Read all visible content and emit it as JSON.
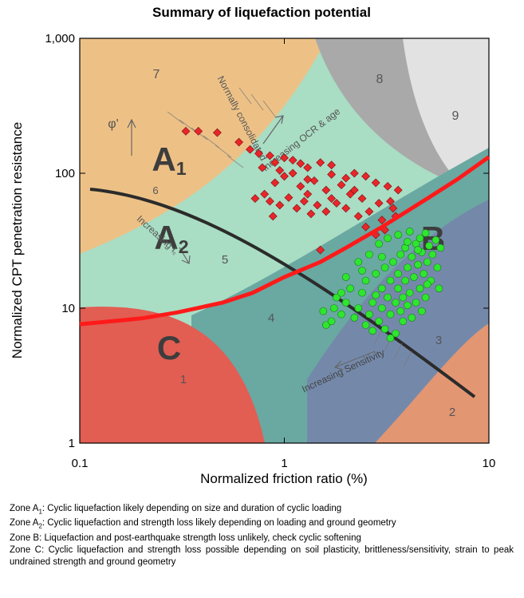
{
  "chart_data": {
    "type": "scatter",
    "title": "Summary of liquefaction potential",
    "x_label": "Normalized friction ratio (%)",
    "y_label": "Normalized CPT penetration resistance",
    "log_x": true,
    "log_y": true,
    "xlim": [
      0.1,
      10
    ],
    "ylim": [
      1,
      1000
    ],
    "xticks": [
      0.1,
      1,
      10
    ],
    "yticks": [
      1,
      10,
      100,
      {
        "value": 1000,
        "label": "1,000"
      }
    ],
    "series": [
      {
        "mark": "diamond",
        "color": "#e8262a",
        "x": [
          0.33,
          0.38,
          0.47,
          0.6,
          0.68,
          0.75,
          0.85,
          0.9,
          1.0,
          1.1,
          1.2,
          1.3,
          1.5,
          1.7,
          2.2,
          2.5,
          2.8,
          3.2,
          3.6,
          0.72,
          0.8,
          0.85,
          0.95,
          1.05,
          1.15,
          1.25,
          1.35,
          1.45,
          1.6,
          1.8,
          2.0,
          2.3,
          2.6,
          3.0,
          3.5,
          0.9,
          1.0,
          1.2,
          1.4,
          1.6,
          1.9,
          2.1,
          2.4,
          2.9,
          3.3,
          1.1,
          1.3,
          1.7,
          2.0,
          0.78,
          0.95,
          2.5,
          2.8,
          3.1,
          1.5,
          3.4,
          2.2,
          1.7,
          1.3,
          0.88
        ],
        "values": [
          205,
          205,
          200,
          170,
          150,
          140,
          135,
          120,
          130,
          125,
          118,
          110,
          120,
          115,
          100,
          95,
          85,
          80,
          75,
          65,
          70,
          62,
          58,
          66,
          55,
          62,
          50,
          58,
          52,
          60,
          55,
          48,
          52,
          45,
          48,
          85,
          95,
          80,
          88,
          75,
          82,
          70,
          65,
          60,
          62,
          100,
          90,
          98,
          92,
          110,
          105,
          40,
          35,
          38,
          27,
          55,
          75,
          65,
          70,
          48
        ]
      },
      {
        "mark": "circle",
        "color": "#2ee62e",
        "x": [
          1.55,
          1.6,
          1.7,
          1.75,
          1.8,
          1.9,
          2.0,
          2.1,
          2.2,
          2.3,
          2.4,
          2.5,
          2.5,
          2.6,
          2.7,
          2.8,
          2.8,
          2.9,
          3.0,
          3.0,
          3.1,
          3.1,
          3.2,
          3.3,
          3.3,
          3.4,
          3.5,
          3.5,
          3.6,
          3.6,
          3.7,
          3.7,
          3.8,
          3.9,
          3.9,
          4.0,
          4.0,
          4.1,
          4.2,
          4.2,
          4.3,
          4.4,
          4.4,
          4.5,
          4.6,
          4.6,
          4.7,
          4.8,
          4.9,
          4.9,
          5.0,
          5.1,
          5.2,
          5.3,
          5.5,
          5.6,
          5.8,
          5.7,
          2.3,
          2.0,
          1.9,
          2.6,
          2.9,
          3.2,
          3.6,
          4.1,
          4.5,
          3.8,
          3.3,
          2.7,
          4.0,
          3.0,
          2.4,
          5.0,
          4.7
        ],
        "values": [
          9.5,
          7.5,
          8,
          10,
          12,
          9,
          11,
          14,
          8.5,
          10,
          13,
          16,
          7.5,
          9,
          11,
          12.5,
          18,
          8,
          10,
          14,
          20,
          7,
          12,
          16,
          9,
          22,
          11,
          6.5,
          14,
          18,
          25,
          9.5,
          12,
          16,
          28,
          20,
          10.5,
          13,
          24,
          8.5,
          17,
          30,
          11,
          21,
          14,
          33,
          26,
          18,
          36,
          12,
          22,
          29,
          16,
          25,
          32,
          20,
          28,
          14,
          22,
          17,
          13,
          25,
          30,
          33,
          35,
          37,
          27,
          8,
          6,
          6.8,
          31,
          24,
          19,
          15,
          9.5
        ]
      },
      {
        "mark": "line",
        "color": "#ff1a1a",
        "x": [
          0.1,
          0.2,
          0.3,
          0.5,
          0.7,
          1,
          1.5,
          2,
          3,
          5,
          7,
          10
        ],
        "values": [
          7.6,
          8.4,
          9.3,
          11,
          13,
          17,
          22,
          28,
          40,
          65,
          90,
          132
        ]
      }
    ],
    "zone_labels": [
      {
        "text": "7"
      },
      {
        "text": "8"
      },
      {
        "text": "9"
      },
      {
        "text": "6"
      },
      {
        "text": "5"
      },
      {
        "text": "4"
      },
      {
        "text": "3"
      },
      {
        "text": "2"
      },
      {
        "text": "1"
      },
      {
        "text": "A",
        "sub": "1"
      },
      {
        "text": "A",
        "sub": "2"
      },
      {
        "text": "B"
      },
      {
        "text": "C"
      },
      {
        "text": "φ'"
      },
      {
        "text": "Increasing Sensitivity"
      },
      {
        "text": "Normally consolidated"
      },
      {
        "text": "Increasing OCR & age"
      },
      {
        "text": "Increasing I",
        "sub": "c"
      }
    ]
  },
  "notes": [
    {
      "prefix": "Zone A",
      "sub": "1",
      "text": ": Cyclic liquefaction likely depending on size and duration of cyclic loading"
    },
    {
      "prefix": "Zone A",
      "sub": "2",
      "text": ": Cyclic liquefaction and strength loss likely depending on loading and ground geometry"
    },
    {
      "text": "Zone B: Liquefaction and post-earthquake strength loss unlikely, check cyclic softening"
    },
    {
      "text": "Zone C: Cyclic liquefaction and strength loss possible depending on soil plasticity, brittleness/sensitivity, strain to peak undrained strength and ground geometry"
    }
  ]
}
